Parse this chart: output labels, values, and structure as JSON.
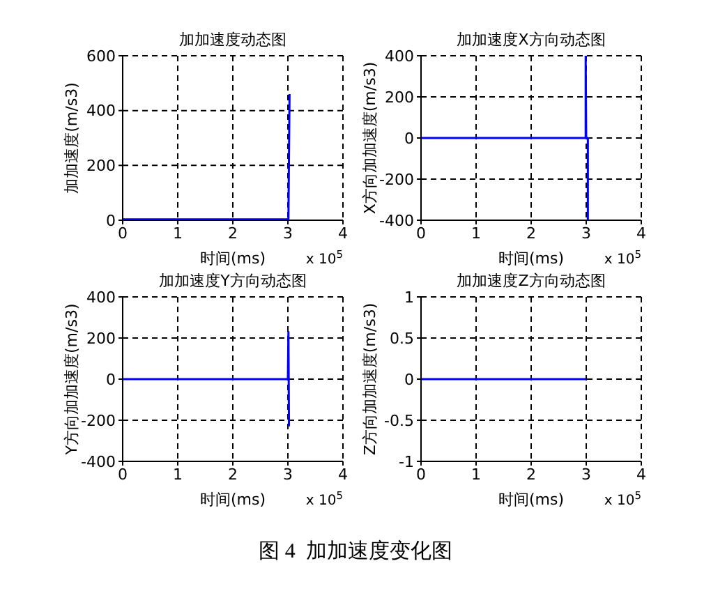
{
  "chart_data": [
    {
      "type": "line",
      "title": "加加速度动态图",
      "xlabel": "时间(ms)",
      "ylabel": "加加速度(m/s3)",
      "annotations": [
        "x 10$^{5}$"
      ],
      "x": [
        0,
        3.01,
        3.03
      ],
      "values": [
        3,
        3,
        460
      ],
      "color": "#0000ff",
      "xlim": [
        0,
        4
      ],
      "xticks": [
        0,
        1,
        2,
        3,
        4
      ],
      "ylim": [
        0,
        600
      ],
      "yticks": [
        0,
        200,
        400,
        600
      ],
      "grid": true
    },
    {
      "type": "line",
      "title": "加加速度X方向动态图",
      "xlabel": "时间(ms)",
      "ylabel": "X方向加加速度(m/s3)",
      "annotations": [
        "x 10$^{5}$"
      ],
      "x": [
        0,
        2.99,
        2.99,
        3.0,
        3.03,
        3.03
      ],
      "values": [
        0,
        0,
        400,
        0,
        0,
        -400
      ],
      "color": "#0000ff",
      "xlim": [
        0,
        4
      ],
      "xticks": [
        0,
        1,
        2,
        3,
        4
      ],
      "ylim": [
        -400,
        400
      ],
      "yticks": [
        -400,
        -200,
        0,
        200,
        400
      ],
      "grid": true
    },
    {
      "type": "line",
      "title": "加加速度Y方向动态图",
      "xlabel": "时间(ms)",
      "ylabel": "Y方向加加速度(m/s3)",
      "annotations": [
        "x 10$^{5}$"
      ],
      "x": [
        0,
        3.0,
        3.01,
        3.015,
        3.02
      ],
      "values": [
        0,
        0,
        230,
        0,
        -230
      ],
      "color": "#0000ff",
      "xlim": [
        0,
        4
      ],
      "xticks": [
        0,
        1,
        2,
        3,
        4
      ],
      "ylim": [
        -400,
        400
      ],
      "yticks": [
        -400,
        -200,
        0,
        200,
        400
      ],
      "grid": true
    },
    {
      "type": "line",
      "title": "加加速度Z方向动态图",
      "xlabel": "时间(ms)",
      "ylabel": "Z方向加加速度(m/s3)",
      "annotations": [
        "x 10$^{5}$",
        "图 4  加加速度变化图"
      ],
      "x": [
        0,
        3.0
      ],
      "values": [
        0,
        0
      ],
      "color": "#0000ff",
      "xlim": [
        0,
        4
      ],
      "xticks": [
        0,
        1,
        2,
        3,
        4
      ],
      "ylim": [
        -1,
        1
      ],
      "yticks": [
        -1,
        -0.5,
        0,
        0.5,
        1
      ],
      "grid": true
    }
  ]
}
